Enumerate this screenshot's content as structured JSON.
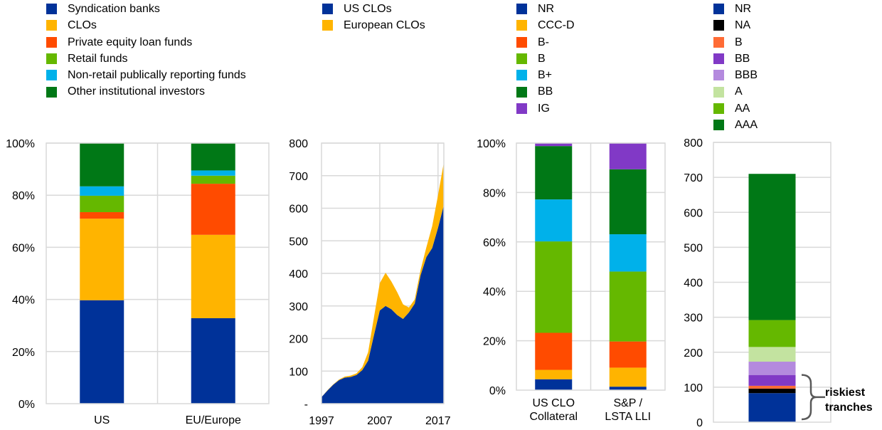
{
  "chart_data": [
    {
      "id": "holders",
      "type": "bar",
      "stacked": true,
      "title": "",
      "xlabel": "",
      "ylabel": "",
      "ylim": [
        0,
        100
      ],
      "yticks": [
        "0%",
        "20%",
        "40%",
        "60%",
        "80%",
        "100%"
      ],
      "ytick_values": [
        0,
        20,
        40,
        60,
        80,
        100
      ],
      "categories": [
        "US",
        "EU/Europe"
      ],
      "grid": true,
      "legend_position": "top",
      "series": [
        {
          "name": "Syndication banks",
          "color": "#003299",
          "values": [
            39.7,
            32.8
          ]
        },
        {
          "name": "CLOs",
          "color": "#ffb400",
          "values": [
            31.3,
            32.0
          ]
        },
        {
          "name": "Private equity loan funds",
          "color": "#ff4b00",
          "values": [
            2.5,
            19.6
          ]
        },
        {
          "name": "Retail funds",
          "color": "#65b800",
          "values": [
            6.3,
            3.1
          ]
        },
        {
          "name": "Non-retail publically reporting funds",
          "color": "#00b1ea",
          "values": [
            3.6,
            2.0
          ]
        },
        {
          "name": "Other institutional investors",
          "color": "#007816",
          "values": [
            16.6,
            10.5
          ]
        }
      ]
    },
    {
      "id": "clo-issuance",
      "type": "area",
      "stacked": true,
      "title": "",
      "xlabel": "",
      "ylabel": "",
      "ylim": [
        0,
        800
      ],
      "yticks": [
        "-",
        "100",
        "200",
        "300",
        "400",
        "500",
        "600",
        "700",
        "800"
      ],
      "ytick_values": [
        0,
        100,
        200,
        300,
        400,
        500,
        600,
        700,
        800
      ],
      "xticks": [
        "1997",
        "2007",
        "2017"
      ],
      "xtick_values": [
        1997,
        2007,
        2017
      ],
      "xlim": [
        1997,
        2018
      ],
      "grid": true,
      "legend_position": "top",
      "x": [
        1997,
        1998,
        1999,
        2000,
        2001,
        2002,
        2003,
        2004,
        2005,
        2006,
        2007,
        2008,
        2009,
        2010,
        2011,
        2012,
        2013,
        2014,
        2015,
        2016,
        2017,
        2018
      ],
      "series": [
        {
          "name": "US CLOs",
          "color": "#003299",
          "values": [
            20,
            40,
            58,
            72,
            80,
            82,
            88,
            103,
            132,
            210,
            286,
            300,
            290,
            272,
            260,
            280,
            307,
            394,
            450,
            478,
            540,
            610
          ]
        },
        {
          "name": "European CLOs",
          "color": "#ffb400",
          "values": [
            0,
            1,
            1,
            2,
            3,
            4,
            5,
            9,
            26,
            55,
            84,
            102,
            85,
            70,
            45,
            15,
            13,
            16,
            30,
            67,
            100,
            131
          ]
        }
      ]
    },
    {
      "id": "ratings-collateral",
      "type": "bar",
      "stacked": true,
      "title": "",
      "xlabel": "",
      "ylabel": "",
      "ylim": [
        0,
        100
      ],
      "yticks": [
        "0%",
        "20%",
        "40%",
        "60%",
        "80%",
        "100%"
      ],
      "ytick_values": [
        0,
        20,
        40,
        60,
        80,
        100
      ],
      "categories": [
        "US CLO\nCollateral",
        "S&P /\nLSTA LLI"
      ],
      "category_lines": [
        [
          "US CLO",
          "Collateral"
        ],
        [
          "S&P /",
          "LSTA LLI"
        ]
      ],
      "grid": true,
      "legend_position": "top",
      "series": [
        {
          "name": "NR",
          "color": "#003299",
          "values": [
            4.4,
            1.4
          ]
        },
        {
          "name": "CCC-D",
          "color": "#ffb400",
          "values": [
            3.8,
            7.7
          ]
        },
        {
          "name": "B-",
          "color": "#ff4b00",
          "values": [
            15.0,
            10.6
          ]
        },
        {
          "name": "B",
          "color": "#65b800",
          "values": [
            37.0,
            28.3
          ]
        },
        {
          "name": "B+",
          "color": "#00b1ea",
          "values": [
            17.0,
            15.1
          ]
        },
        {
          "name": "BB",
          "color": "#007816",
          "values": [
            21.6,
            26.3
          ]
        },
        {
          "name": "IG",
          "color": "#8139c6",
          "values": [
            1.2,
            10.6
          ]
        }
      ]
    },
    {
      "id": "clo-tranches",
      "type": "bar",
      "stacked": true,
      "title": "",
      "xlabel": "",
      "ylabel": "",
      "ylim": [
        0,
        800
      ],
      "yticks": [
        "0",
        "100",
        "200",
        "300",
        "400",
        "500",
        "600",
        "700",
        "800"
      ],
      "ytick_values": [
        0,
        100,
        200,
        300,
        400,
        500,
        600,
        700,
        800
      ],
      "categories": [
        ""
      ],
      "grid": true,
      "legend_position": "top",
      "annotation": {
        "text_lines": [
          "riskiest",
          "tranches"
        ],
        "range": [
          0,
          135
        ]
      },
      "series": [
        {
          "name": "NR",
          "color": "#003299",
          "values": [
            83
          ]
        },
        {
          "name": "NA",
          "color": "#000000",
          "values": [
            13
          ]
        },
        {
          "name": "B",
          "color": "#ff6b35",
          "values": [
            8
          ]
        },
        {
          "name": "BB",
          "color": "#8139c6",
          "values": [
            31
          ]
        },
        {
          "name": "BBB",
          "color": "#b48ade",
          "values": [
            38
          ]
        },
        {
          "name": "A",
          "color": "#c3e3a0",
          "values": [
            42
          ]
        },
        {
          "name": "AA",
          "color": "#65b800",
          "values": [
            77
          ]
        },
        {
          "name": "AAA",
          "color": "#007816",
          "values": [
            418
          ]
        }
      ]
    }
  ]
}
